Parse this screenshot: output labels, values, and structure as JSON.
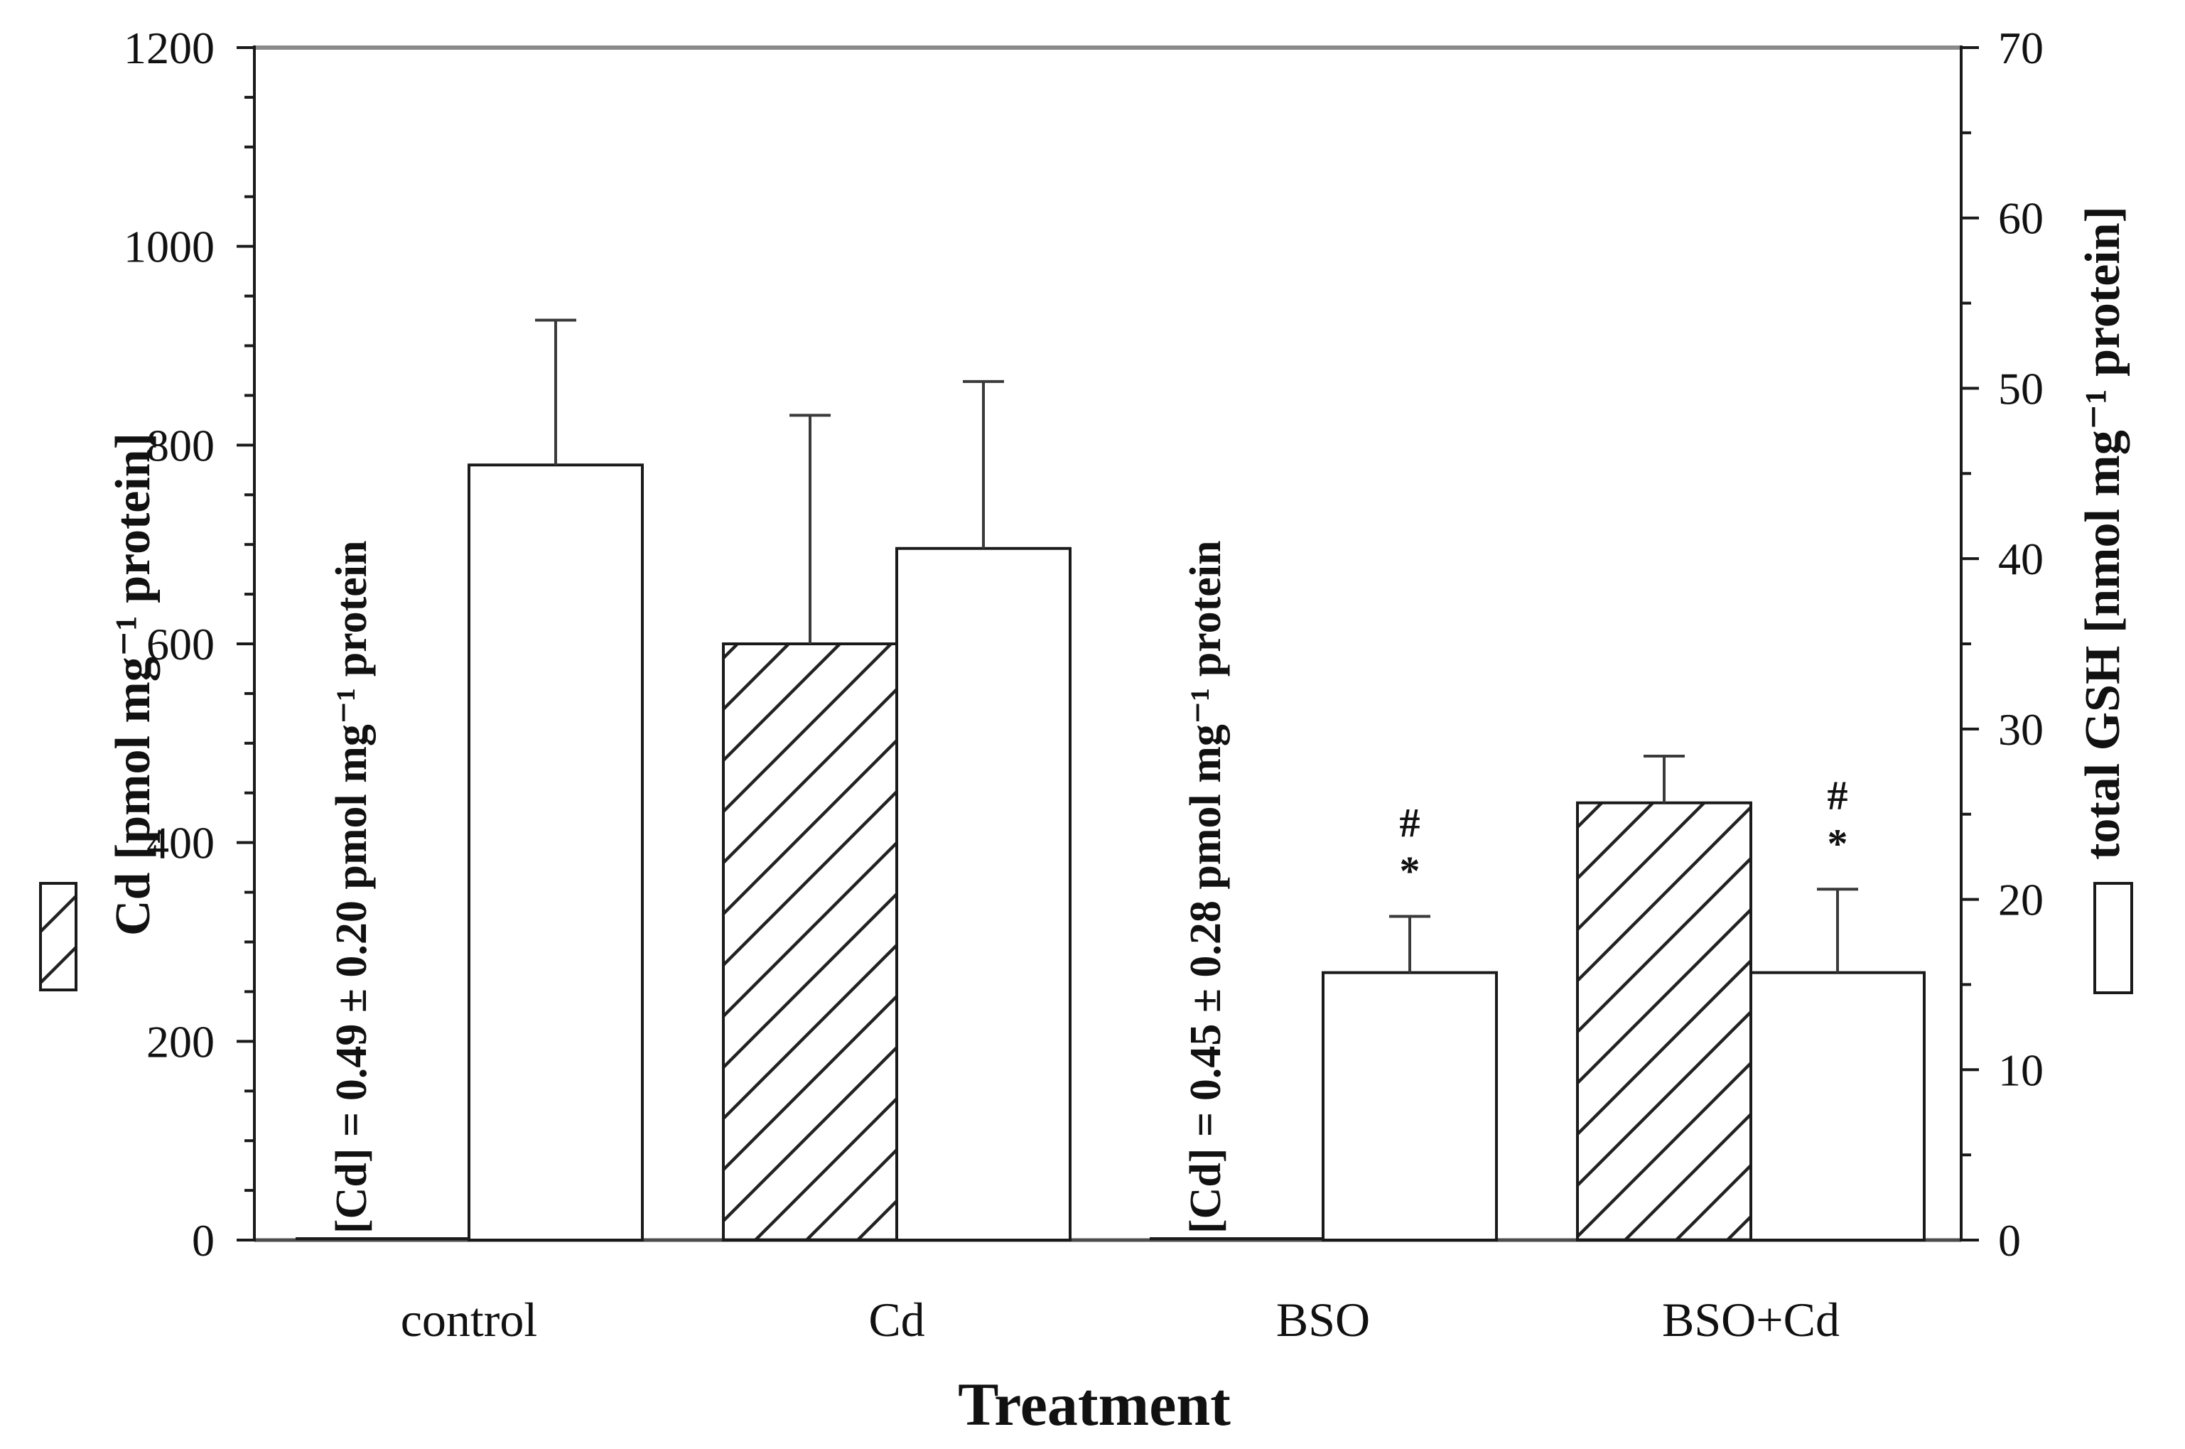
{
  "figure": {
    "background": "#ffffff",
    "ink_color": "#1a1a1a",
    "error_bar_color": "#3a3a3a",
    "top_border_color": "#8a8a8a",
    "bottom_border_color": "#4d4d4d",
    "bar_fill_open": "#ffffff",
    "hatch_color": "#222222"
  },
  "chart_data": {
    "type": "bar",
    "title": "",
    "xlabel": "Treatment",
    "grid": false,
    "categories": [
      "control",
      "Cd",
      "BSO",
      "BSO+Cd"
    ],
    "left_axis": {
      "label": "Cd [pmol mg⁻¹ protein]",
      "range": [
        0,
        1200
      ],
      "major_tick_step": 200,
      "minor_tick_step": 50,
      "tick_labels": [
        "0",
        "200",
        "400",
        "600",
        "800",
        "1000",
        "1200"
      ]
    },
    "right_axis": {
      "label": "total GSH [nmol mg⁻¹ protein]",
      "range": [
        0,
        70
      ],
      "major_tick_step": 10,
      "minor_tick_step": 5,
      "tick_labels": [
        "0",
        "10",
        "20",
        "30",
        "40",
        "50",
        "60",
        "70"
      ]
    },
    "series": [
      {
        "name": "Cd",
        "axis": "left",
        "style": "hatched",
        "values": [
          0.49,
          600,
          0.45,
          440
        ],
        "errors_plus": [
          0.2,
          230,
          0.28,
          47
        ],
        "below_detection_notes": [
          "[Cd] = 0.49 ± 0.20 pmol mg⁻¹ protein",
          null,
          "[Cd] = 0.45 ± 0.28 pmol mg⁻¹ protein",
          null
        ]
      },
      {
        "name": "total GSH",
        "axis": "right",
        "style": "open",
        "values": [
          45.5,
          40.6,
          15.7,
          15.7
        ],
        "errors_plus": [
          8.5,
          9.8,
          3.3,
          4.9
        ],
        "significance": [
          null,
          null,
          [
            "#",
            "*"
          ],
          [
            "#",
            "*"
          ]
        ]
      }
    ],
    "legend": [
      {
        "series": "Cd",
        "style": "hatched",
        "position": "outer-left"
      },
      {
        "series": "total GSH",
        "style": "open",
        "position": "outer-right"
      }
    ],
    "legend_position": "outside left and right margins below axis titles"
  }
}
